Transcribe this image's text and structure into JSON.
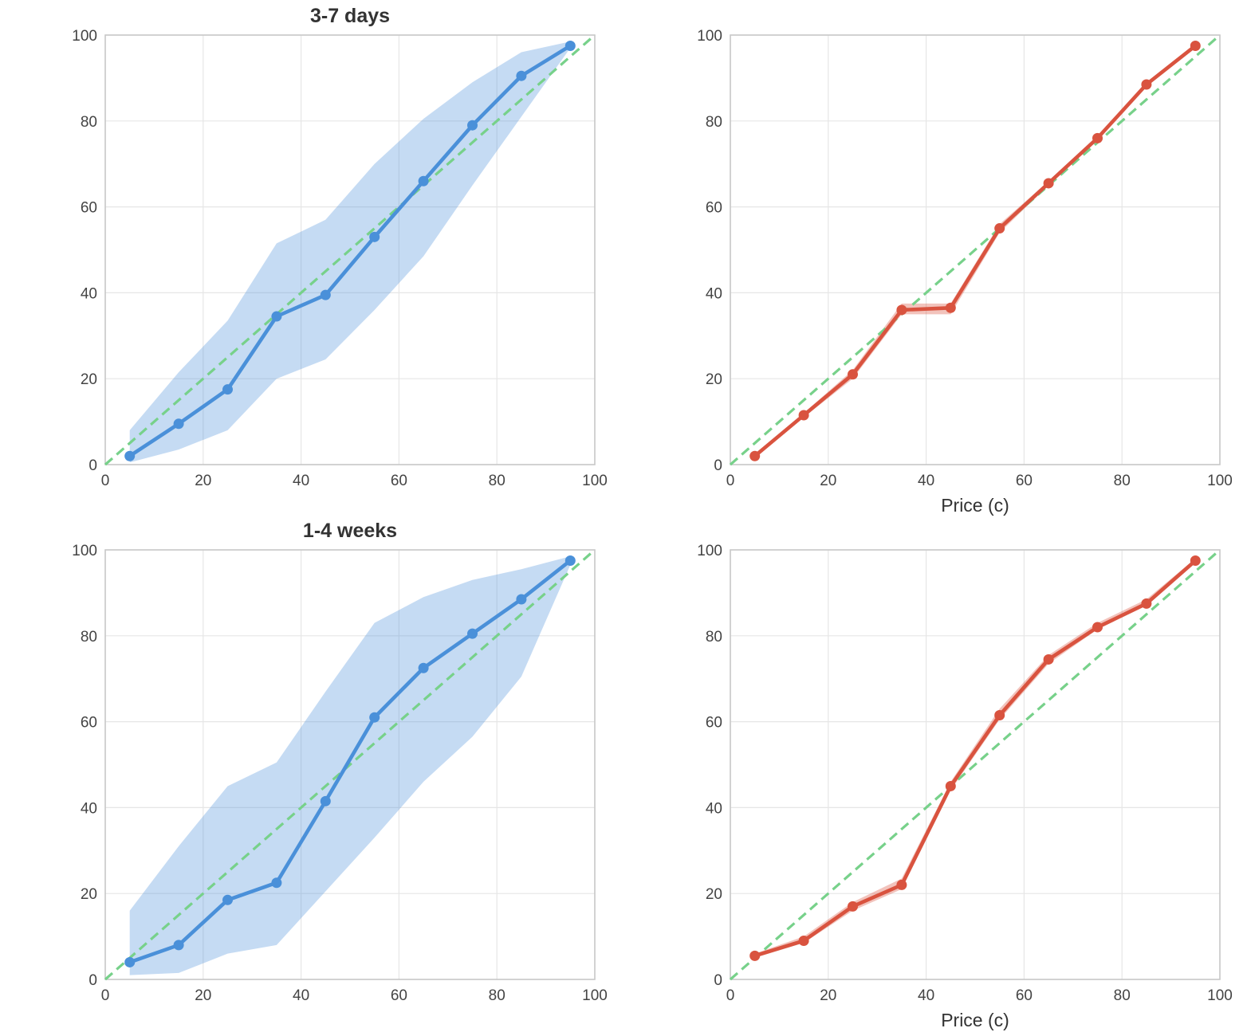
{
  "chart_data": [
    {
      "type": "line",
      "title": "3-7 days",
      "xlabel": "",
      "ylabel": "",
      "xlim": [
        0,
        100
      ],
      "ylim": [
        0,
        100
      ],
      "xticks": [
        0,
        20,
        40,
        60,
        80,
        100
      ],
      "yticks": [
        0,
        20,
        40,
        60,
        80,
        100
      ],
      "grid": true,
      "color": "#4a90d9",
      "reference_line": {
        "style": "dashed",
        "color": "#77d18a",
        "from": [
          0,
          0
        ],
        "to": [
          100,
          100
        ]
      },
      "x": [
        5,
        15,
        25,
        35,
        45,
        55,
        65,
        75,
        85,
        95
      ],
      "y": [
        2,
        9.5,
        17.5,
        34.5,
        39.5,
        53,
        66,
        79,
        90.5,
        97.5
      ],
      "band_lower": [
        0.5,
        3.5,
        8,
        20,
        24.5,
        36,
        48.5,
        65,
        81,
        97
      ],
      "band_upper": [
        8,
        21.5,
        33.5,
        51.5,
        57,
        70,
        80.5,
        89,
        96,
        98.5
      ]
    },
    {
      "type": "line",
      "title": "",
      "xlabel": "Price (c)",
      "ylabel": "",
      "xlim": [
        0,
        100
      ],
      "ylim": [
        0,
        100
      ],
      "xticks": [
        0,
        20,
        40,
        60,
        80,
        100
      ],
      "yticks": [
        0,
        20,
        40,
        60,
        80,
        100
      ],
      "grid": true,
      "color": "#d9533f",
      "reference_line": {
        "style": "dashed",
        "color": "#77d18a",
        "from": [
          0,
          0
        ],
        "to": [
          100,
          100
        ]
      },
      "x": [
        5,
        15,
        25,
        35,
        45,
        55,
        65,
        75,
        85,
        95
      ],
      "y": [
        2,
        11.5,
        21,
        36,
        36.5,
        55,
        65.5,
        76,
        88.5,
        97.5
      ],
      "band_lower": [
        1.5,
        11,
        20,
        35,
        35,
        54,
        65,
        75.5,
        88,
        97
      ],
      "band_upper": [
        2.5,
        12,
        22,
        37.5,
        37.5,
        56,
        66,
        76.5,
        89,
        98
      ]
    },
    {
      "type": "line",
      "title": "1-4 weeks",
      "xlabel": "",
      "ylabel": "",
      "xlim": [
        0,
        100
      ],
      "ylim": [
        0,
        100
      ],
      "xticks": [
        0,
        20,
        40,
        60,
        80,
        100
      ],
      "yticks": [
        0,
        20,
        40,
        60,
        80,
        100
      ],
      "grid": true,
      "color": "#4a90d9",
      "reference_line": {
        "style": "dashed",
        "color": "#77d18a",
        "from": [
          0,
          0
        ],
        "to": [
          100,
          100
        ]
      },
      "x": [
        5,
        15,
        25,
        35,
        45,
        55,
        65,
        75,
        85,
        95
      ],
      "y": [
        4,
        8,
        18.5,
        22.5,
        41.5,
        61,
        72.5,
        80.5,
        88.5,
        97.5
      ],
      "band_lower": [
        1,
        1.5,
        6,
        8,
        20.5,
        33,
        46,
        56.5,
        70.5,
        96.5
      ],
      "band_upper": [
        16,
        31,
        45,
        50.5,
        67,
        83,
        89,
        93,
        95.5,
        98.5
      ]
    },
    {
      "type": "line",
      "title": "",
      "xlabel": "Price (c)",
      "ylabel": "",
      "xlim": [
        0,
        100
      ],
      "ylim": [
        0,
        100
      ],
      "xticks": [
        0,
        20,
        40,
        60,
        80,
        100
      ],
      "yticks": [
        0,
        20,
        40,
        60,
        80,
        100
      ],
      "grid": true,
      "color": "#d9533f",
      "reference_line": {
        "style": "dashed",
        "color": "#77d18a",
        "from": [
          0,
          0
        ],
        "to": [
          100,
          100
        ]
      },
      "x": [
        5,
        15,
        25,
        35,
        45,
        55,
        65,
        75,
        85,
        95
      ],
      "y": [
        5.5,
        9,
        17,
        22,
        45,
        61.5,
        74.5,
        82,
        87.5,
        97.5
      ],
      "band_lower": [
        5,
        8.5,
        16,
        21,
        44,
        60.5,
        73.5,
        81.5,
        87,
        97
      ],
      "band_upper": [
        6,
        10,
        18,
        23.5,
        46,
        63,
        75.5,
        83,
        88.5,
        98
      ]
    }
  ]
}
